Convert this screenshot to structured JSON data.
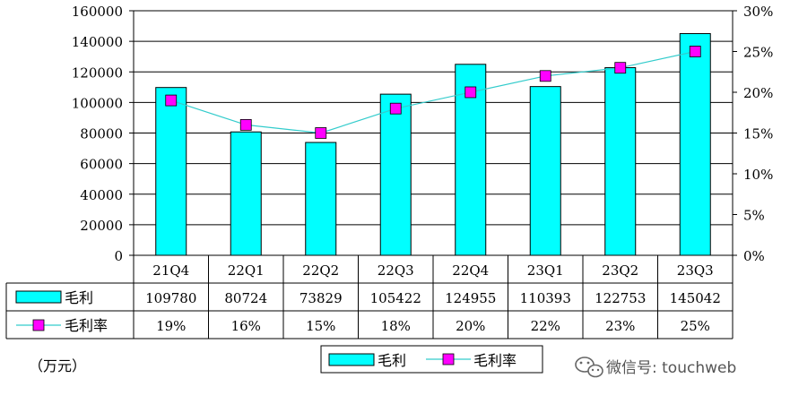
{
  "chart_data": {
    "type": "bar",
    "categories": [
      "21Q4",
      "22Q1",
      "22Q2",
      "22Q3",
      "22Q4",
      "23Q1",
      "23Q2",
      "23Q3"
    ],
    "series": [
      {
        "name": "毛利",
        "type": "bar",
        "axis": "left",
        "values": [
          109780,
          80724,
          73829,
          105422,
          124955,
          110393,
          122753,
          145042
        ],
        "labels": [
          "109780",
          "80724",
          "73829",
          "105422",
          "124955",
          "110393",
          "122753",
          "145042"
        ]
      },
      {
        "name": "毛利率",
        "type": "line",
        "axis": "right",
        "values": [
          19,
          16,
          15,
          18,
          20,
          22,
          23,
          25
        ],
        "labels": [
          "19%",
          "16%",
          "15%",
          "18%",
          "20%",
          "22%",
          "23%",
          "25%"
        ]
      }
    ],
    "y_left": {
      "min": 0,
      "max": 160000,
      "ticks": [
        "0",
        "20000",
        "40000",
        "60000",
        "80000",
        "100000",
        "120000",
        "140000",
        "160000"
      ]
    },
    "y_right": {
      "min": 0,
      "max": 30,
      "ticks": [
        "0%",
        "5%",
        "10%",
        "15%",
        "20%",
        "25%",
        "30%"
      ]
    },
    "unit_label": "（万元）",
    "legend": {
      "position": "bottom",
      "items": [
        "毛利",
        "毛利率"
      ]
    },
    "grid": true
  },
  "colors": {
    "bar": "#00ffff",
    "line": "#33cccc",
    "marker": "#ff00ff"
  },
  "watermark": {
    "text": "微信号: touchweb",
    "icon": "wechat-icon"
  }
}
